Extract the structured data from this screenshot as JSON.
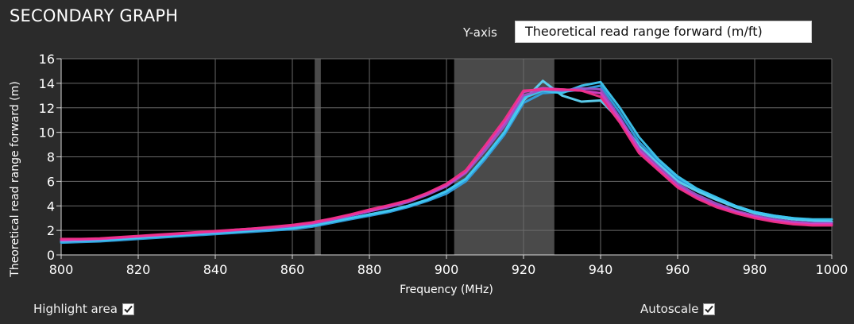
{
  "panel": {
    "title": "SECONDARY GRAPH",
    "yaxis_label": "Y-axis",
    "yaxis_value": "Theoretical read range forward (m/ft)",
    "highlight_label": "Highlight area",
    "highlight_checked": true,
    "autoscale_label": "Autoscale",
    "autoscale_checked": true
  },
  "chart_data": {
    "type": "line",
    "xlabel": "Frequency (MHz)",
    "ylabel": "Theoretical read range forward (m)",
    "xlim": [
      800,
      1000
    ],
    "ylim": [
      0,
      16
    ],
    "x_ticks": [
      800,
      820,
      840,
      860,
      880,
      900,
      920,
      940,
      960,
      980,
      1000
    ],
    "y_ticks": [
      0,
      2,
      4,
      6,
      8,
      10,
      12,
      14,
      16
    ],
    "grid": true,
    "highlight_bands": [
      {
        "x0": 865.8,
        "x1": 867.4
      },
      {
        "x0": 902,
        "x1": 928
      }
    ],
    "x": [
      800,
      805,
      810,
      815,
      820,
      825,
      830,
      835,
      840,
      845,
      850,
      855,
      860,
      865,
      870,
      875,
      880,
      885,
      890,
      895,
      900,
      905,
      910,
      915,
      920,
      925,
      930,
      935,
      940,
      945,
      950,
      955,
      960,
      965,
      970,
      975,
      980,
      985,
      990,
      995,
      1000
    ],
    "series": [
      {
        "color": "#2f9fe0",
        "values": [
          1.0,
          1.05,
          1.1,
          1.2,
          1.3,
          1.4,
          1.5,
          1.6,
          1.7,
          1.8,
          1.9,
          2.0,
          2.1,
          2.3,
          2.6,
          2.9,
          3.2,
          3.5,
          3.9,
          4.4,
          5.0,
          6.0,
          7.8,
          9.8,
          12.4,
          13.2,
          13.3,
          13.5,
          13.8,
          11.6,
          9.2,
          7.6,
          6.2,
          5.3,
          4.6,
          4.0,
          3.5,
          3.2,
          3.0,
          2.8,
          2.7
        ]
      },
      {
        "color": "#5fd3f3",
        "values": [
          1.1,
          1.15,
          1.2,
          1.3,
          1.4,
          1.5,
          1.6,
          1.7,
          1.8,
          1.9,
          2.0,
          2.1,
          2.2,
          2.4,
          2.7,
          3.0,
          3.3,
          3.6,
          4.0,
          4.5,
          5.2,
          6.2,
          8.0,
          10.0,
          12.6,
          14.2,
          13.0,
          12.5,
          12.6,
          11.0,
          8.9,
          7.4,
          6.0,
          5.2,
          4.5,
          3.9,
          3.4,
          3.1,
          2.9,
          2.8,
          2.7
        ]
      },
      {
        "color": "#3ec6f0",
        "values": [
          1.1,
          1.15,
          1.2,
          1.3,
          1.4,
          1.5,
          1.6,
          1.7,
          1.8,
          1.9,
          2.0,
          2.1,
          2.2,
          2.4,
          2.7,
          3.0,
          3.3,
          3.6,
          4.0,
          4.5,
          5.2,
          6.2,
          8.0,
          10.0,
          12.8,
          13.4,
          13.2,
          13.8,
          14.1,
          12.0,
          9.6,
          7.8,
          6.4,
          5.4,
          4.7,
          4.0,
          3.5,
          3.2,
          3.0,
          2.9,
          2.9
        ]
      },
      {
        "color": "#9a55c8",
        "values": [
          1.2,
          1.25,
          1.3,
          1.4,
          1.5,
          1.6,
          1.7,
          1.8,
          1.9,
          2.0,
          2.1,
          2.2,
          2.35,
          2.55,
          2.85,
          3.2,
          3.55,
          3.9,
          4.3,
          4.9,
          5.6,
          6.7,
          8.5,
          10.5,
          13.0,
          13.5,
          13.4,
          13.6,
          13.5,
          11.2,
          8.7,
          7.2,
          5.8,
          4.9,
          4.2,
          3.6,
          3.2,
          2.9,
          2.7,
          2.6,
          2.6
        ]
      },
      {
        "color": "#d640c8",
        "values": [
          1.2,
          1.25,
          1.3,
          1.4,
          1.5,
          1.6,
          1.7,
          1.8,
          1.9,
          2.05,
          2.15,
          2.25,
          2.4,
          2.6,
          2.9,
          3.25,
          3.6,
          4.0,
          4.4,
          5.0,
          5.7,
          6.8,
          8.8,
          10.8,
          13.3,
          13.6,
          13.5,
          13.4,
          13.2,
          11.0,
          8.5,
          7.0,
          5.6,
          4.7,
          4.0,
          3.5,
          3.1,
          2.8,
          2.6,
          2.5,
          2.5
        ]
      },
      {
        "color": "#f0308a",
        "values": [
          1.3,
          1.3,
          1.35,
          1.45,
          1.55,
          1.65,
          1.75,
          1.85,
          1.95,
          2.05,
          2.15,
          2.3,
          2.45,
          2.65,
          2.95,
          3.3,
          3.7,
          4.05,
          4.45,
          5.05,
          5.8,
          6.9,
          8.9,
          11.0,
          13.4,
          13.5,
          13.5,
          13.4,
          12.9,
          10.8,
          8.3,
          6.9,
          5.5,
          4.6,
          3.9,
          3.4,
          3.0,
          2.7,
          2.5,
          2.4,
          2.4
        ]
      }
    ]
  }
}
